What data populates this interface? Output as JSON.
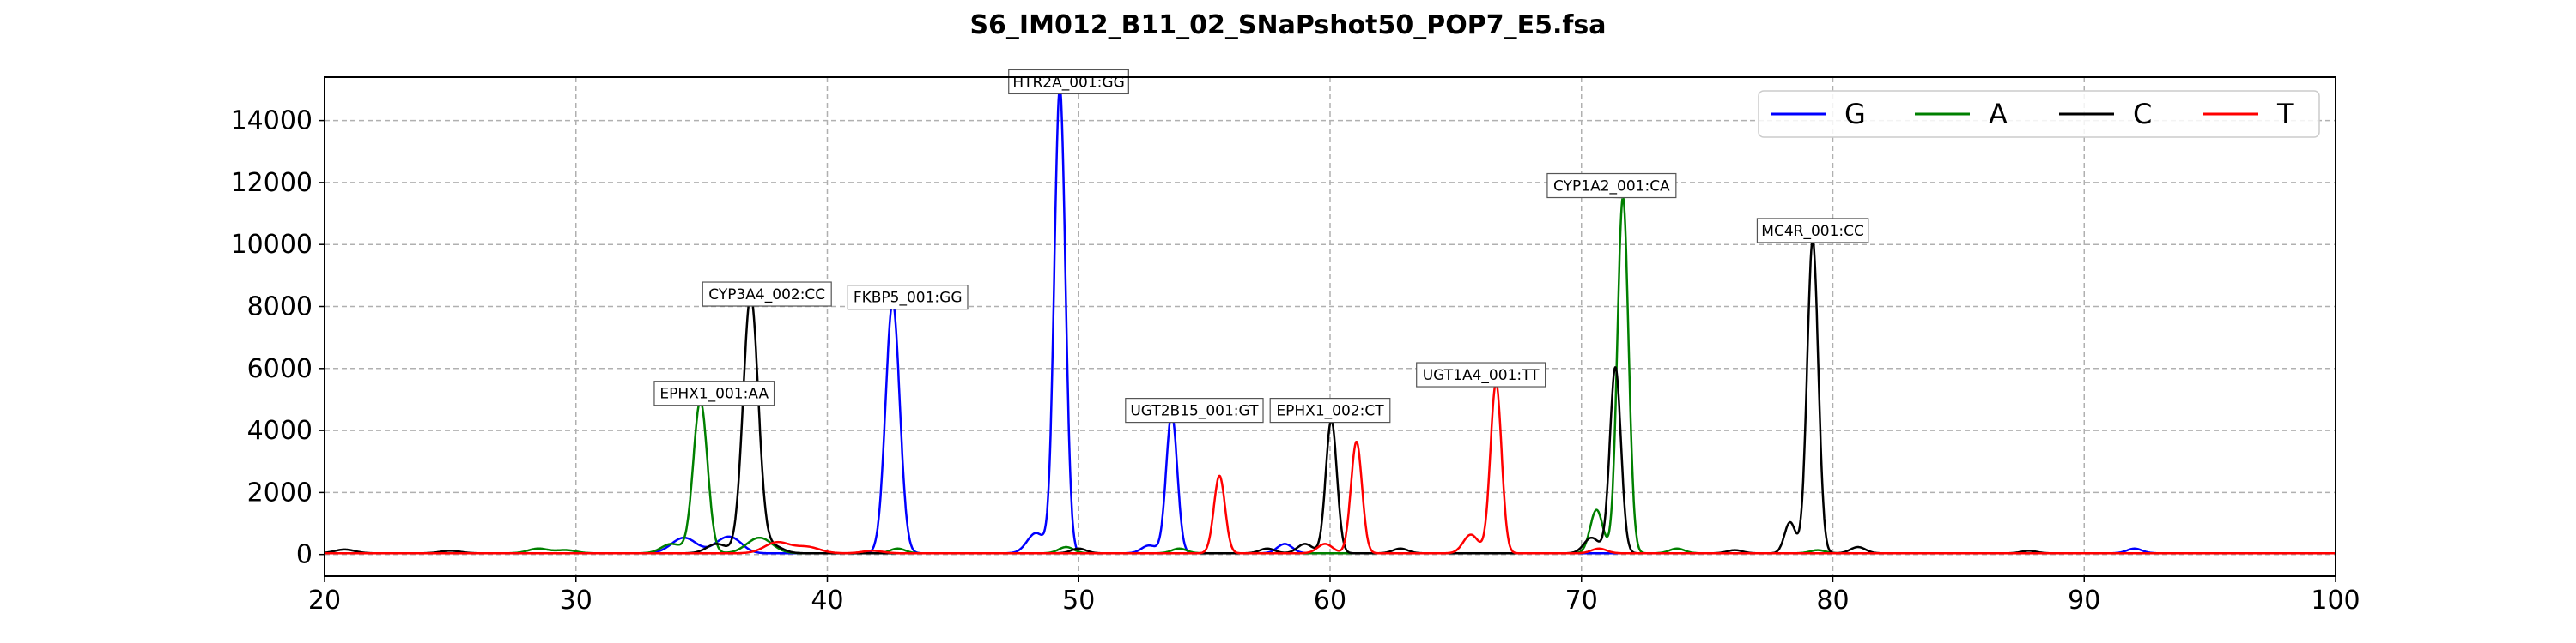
{
  "chart_data": {
    "type": "line",
    "title": "S6_IM012_B11_02_SNaPshot50_POP7_E5.fsa",
    "xlabel": "",
    "ylabel": "",
    "xlim": [
      20,
      100
    ],
    "ylim": [
      -700,
      15400
    ],
    "xticks": [
      20,
      30,
      40,
      50,
      60,
      70,
      80,
      90,
      100
    ],
    "yticks": [
      0,
      2000,
      4000,
      6000,
      8000,
      10000,
      12000,
      14000
    ],
    "grid": true,
    "legend_position": "top-right",
    "series": [
      {
        "name": "G",
        "color": "#0000ff",
        "peaks": [
          {
            "x": 34.3,
            "y": 500,
            "w": 0.5
          },
          {
            "x": 35.8,
            "y": 300,
            "w": 0.4
          },
          {
            "x": 36.3,
            "y": 350,
            "w": 0.4
          },
          {
            "x": 42.6,
            "y": 8100,
            "w": 0.28
          },
          {
            "x": 48.3,
            "y": 650,
            "w": 0.35
          },
          {
            "x": 49.25,
            "y": 15000,
            "w": 0.22
          },
          {
            "x": 53.7,
            "y": 4500,
            "w": 0.22
          },
          {
            "x": 52.8,
            "y": 250,
            "w": 0.3
          },
          {
            "x": 58.2,
            "y": 300,
            "w": 0.3
          },
          {
            "x": 92.0,
            "y": 150,
            "w": 0.3
          }
        ]
      },
      {
        "name": "A",
        "color": "#008000",
        "peaks": [
          {
            "x": 28.5,
            "y": 150,
            "w": 0.4
          },
          {
            "x": 29.6,
            "y": 100,
            "w": 0.4
          },
          {
            "x": 33.8,
            "y": 300,
            "w": 0.4
          },
          {
            "x": 34.95,
            "y": 4900,
            "w": 0.28
          },
          {
            "x": 37.3,
            "y": 500,
            "w": 0.5
          },
          {
            "x": 42.8,
            "y": 150,
            "w": 0.3
          },
          {
            "x": 49.5,
            "y": 200,
            "w": 0.3
          },
          {
            "x": 54.0,
            "y": 150,
            "w": 0.3
          },
          {
            "x": 70.6,
            "y": 1400,
            "w": 0.25
          },
          {
            "x": 71.65,
            "y": 11500,
            "w": 0.22
          },
          {
            "x": 73.8,
            "y": 150,
            "w": 0.3
          },
          {
            "x": 79.4,
            "y": 100,
            "w": 0.3
          }
        ]
      },
      {
        "name": "C",
        "color": "#000000",
        "peaks": [
          {
            "x": 20.8,
            "y": 120,
            "w": 0.4
          },
          {
            "x": 25.0,
            "y": 80,
            "w": 0.4
          },
          {
            "x": 35.6,
            "y": 300,
            "w": 0.4
          },
          {
            "x": 36.95,
            "y": 8300,
            "w": 0.3
          },
          {
            "x": 37.8,
            "y": 250,
            "w": 0.4
          },
          {
            "x": 50.0,
            "y": 150,
            "w": 0.3
          },
          {
            "x": 57.5,
            "y": 150,
            "w": 0.3
          },
          {
            "x": 59.0,
            "y": 300,
            "w": 0.3
          },
          {
            "x": 60.05,
            "y": 4300,
            "w": 0.22
          },
          {
            "x": 62.8,
            "y": 150,
            "w": 0.3
          },
          {
            "x": 70.4,
            "y": 500,
            "w": 0.3
          },
          {
            "x": 71.35,
            "y": 6000,
            "w": 0.22
          },
          {
            "x": 76.1,
            "y": 100,
            "w": 0.3
          },
          {
            "x": 78.3,
            "y": 1000,
            "w": 0.22
          },
          {
            "x": 79.2,
            "y": 10100,
            "w": 0.22
          },
          {
            "x": 81.0,
            "y": 200,
            "w": 0.3
          },
          {
            "x": 87.8,
            "y": 80,
            "w": 0.3
          }
        ]
      },
      {
        "name": "T",
        "color": "#ff0000",
        "peaks": [
          {
            "x": 38.0,
            "y": 350,
            "w": 0.5
          },
          {
            "x": 39.2,
            "y": 200,
            "w": 0.5
          },
          {
            "x": 41.8,
            "y": 80,
            "w": 0.4
          },
          {
            "x": 55.6,
            "y": 2500,
            "w": 0.22
          },
          {
            "x": 59.8,
            "y": 300,
            "w": 0.3
          },
          {
            "x": 61.05,
            "y": 3600,
            "w": 0.22
          },
          {
            "x": 65.6,
            "y": 600,
            "w": 0.3
          },
          {
            "x": 66.6,
            "y": 5500,
            "w": 0.22
          },
          {
            "x": 70.7,
            "y": 150,
            "w": 0.3
          }
        ]
      }
    ],
    "annotations": [
      {
        "label": "EPHX1_001:AA",
        "x": 34.95,
        "y": 4900,
        "tx": 35.5,
        "ty": 5200
      },
      {
        "label": "CYP3A4_002:CC",
        "x": 36.95,
        "y": 8300,
        "tx": 37.6,
        "ty": 8400
      },
      {
        "label": "FKBP5_001:GG",
        "x": 42.6,
        "y": 8100,
        "tx": 43.2,
        "ty": 8300
      },
      {
        "label": "HTR2A_001:GG",
        "x": 49.25,
        "y": 15000,
        "tx": 49.6,
        "ty": 15250
      },
      {
        "label": "UGT2B15_001:GT",
        "x": 53.7,
        "y": 4500,
        "tx": 54.6,
        "ty": 4650
      },
      {
        "label": "EPHX1_002:CT",
        "x": 60.05,
        "y": 4300,
        "tx": 60.0,
        "ty": 4650
      },
      {
        "label": "UGT1A4_001:TT",
        "x": 66.6,
        "y": 5500,
        "tx": 66.0,
        "ty": 5800
      },
      {
        "label": "CYP1A2_001:CA",
        "x": 71.65,
        "y": 11500,
        "tx": 71.2,
        "ty": 11900
      },
      {
        "label": "MC4R_001:CC",
        "x": 79.2,
        "y": 10100,
        "tx": 79.2,
        "ty": 10450
      }
    ]
  }
}
